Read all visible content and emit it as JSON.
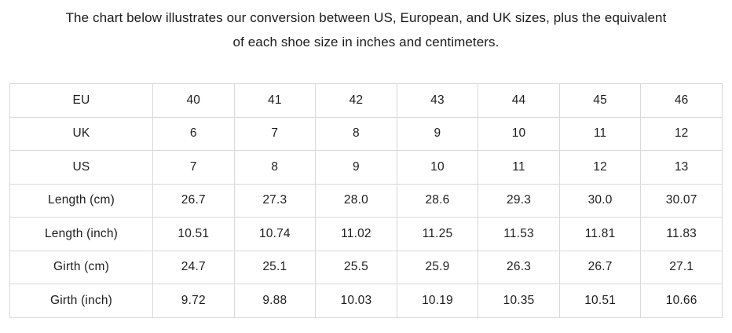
{
  "header": {
    "title_lines": [
      "The chart below illustrates our conversion between US, European, and UK sizes, plus the equivalent",
      "of each shoe size in inches and centimeters."
    ]
  },
  "chart_data": {
    "type": "table",
    "title": "The chart below illustrates our conversion between US, European, and UK sizes, plus the equivalent of each shoe size in inches and centimeters.",
    "rows": [
      {
        "label": "EU",
        "values": [
          "40",
          "41",
          "42",
          "43",
          "44",
          "45",
          "46"
        ]
      },
      {
        "label": "UK",
        "values": [
          "6",
          "7",
          "8",
          "9",
          "10",
          "11",
          "12"
        ]
      },
      {
        "label": "US",
        "values": [
          "7",
          "8",
          "9",
          "10",
          "11",
          "12",
          "13"
        ]
      },
      {
        "label": "Length (cm)",
        "values": [
          "26.7",
          "27.3",
          "28.0",
          "28.6",
          "29.3",
          "30.0",
          "30.07"
        ]
      },
      {
        "label": "Length (inch)",
        "values": [
          "10.51",
          "10.74",
          "11.02",
          "11.25",
          "11.53",
          "11.81",
          "11.83"
        ]
      },
      {
        "label": "Girth (cm)",
        "values": [
          "24.7",
          "25.1",
          "25.5",
          "25.9",
          "26.3",
          "26.7",
          "27.1"
        ]
      },
      {
        "label": "Girth (inch)",
        "values": [
          "9.72",
          "9.88",
          "10.03",
          "10.19",
          "10.35",
          "10.51",
          "10.66"
        ]
      }
    ],
    "layout": {
      "border_color": "#d9d9d9",
      "text_color": "#1d1d1f",
      "background": "#ffffff",
      "grid": true,
      "columns": 8
    }
  }
}
